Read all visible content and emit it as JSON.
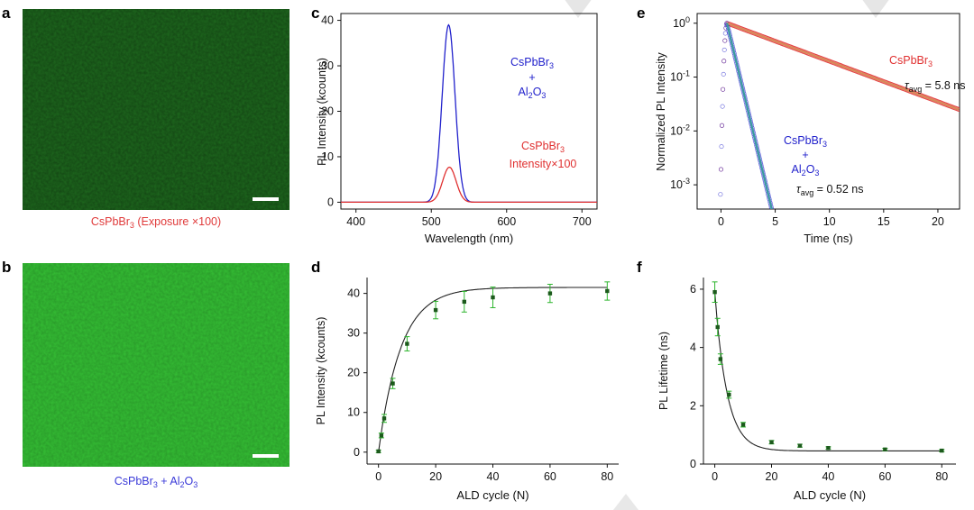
{
  "panels": {
    "a": {
      "letter": "a",
      "caption_main": "CsPbBr",
      "caption_sub": "3",
      "caption_rest": " (Exposure ×100)",
      "caption_color": "#e03a3a",
      "image_color": "#1e6a1e"
    },
    "b": {
      "letter": "b",
      "caption_main": "CsPbBr",
      "caption_sub": "3",
      "caption_mid": " + Al",
      "caption_sub2": "2",
      "caption_end": "O",
      "caption_sub3": "3",
      "caption_color": "#3a3ad8",
      "image_color": "#35c035"
    },
    "c": {
      "letter": "c"
    },
    "d": {
      "letter": "d"
    },
    "e": {
      "letter": "e"
    },
    "f": {
      "letter": "f"
    }
  },
  "colors": {
    "blue": "#2222cc",
    "red": "#e03030",
    "black": "#111111",
    "green": "#2db52d",
    "teal": "#3a9aa0",
    "orange": "#d88a5a"
  },
  "chart_data": [
    {
      "id": "c",
      "type": "line",
      "xlabel": "Wavelength (nm)",
      "ylabel": "PL Intensity (kcounts)",
      "xlim": [
        380,
        720
      ],
      "ylim": [
        -1.5,
        41.5
      ],
      "xticks": [
        400,
        500,
        600,
        700
      ],
      "yticks": [
        0,
        10,
        20,
        30,
        40
      ],
      "series": [
        {
          "name": "CsPbBr3 + Al2O3",
          "color": "#2222cc",
          "peak_x": 523,
          "peak_y": 39,
          "fwhm": 20,
          "baseline": 0
        },
        {
          "name": "CsPbBr3 Intensity ×100",
          "color": "#e03030",
          "peak_x": 524,
          "peak_y": 7.7,
          "fwhm": 21,
          "baseline": 0
        }
      ],
      "annotations": {
        "blue_l1": "CsPbBr",
        "blue_l1_sub": "3",
        "blue_l2": "+",
        "blue_l3": "Al",
        "blue_l3_sub": "2",
        "blue_l3_end": "O",
        "blue_l3_sub2": "3",
        "red_l1": "CsPbBr",
        "red_l1_sub": "3",
        "red_l2": "Intensity×100"
      }
    },
    {
      "id": "d",
      "type": "scatter",
      "xlabel": "ALD cycle (N)",
      "ylabel": "PL Intensity (kcounts)",
      "xlim": [
        -4,
        84
      ],
      "ylim": [
        -3,
        44
      ],
      "xticks": [
        0,
        20,
        40,
        60,
        80
      ],
      "yticks": [
        0,
        10,
        20,
        30,
        40
      ],
      "x": [
        0,
        1,
        2,
        5,
        10,
        20,
        30,
        40,
        60,
        80
      ],
      "y": [
        0.2,
        4.2,
        8.5,
        17.3,
        27.3,
        35.8,
        37.9,
        39.0,
        40.0,
        40.6
      ],
      "err": [
        0.3,
        0.6,
        1.0,
        1.3,
        1.8,
        2.2,
        2.6,
        2.6,
        2.3,
        2.3
      ],
      "fit": {
        "a": 41.5,
        "tau": 7.8,
        "b": 0.0
      }
    },
    {
      "id": "e",
      "type": "scatter",
      "xlabel": "Time (ns)",
      "ylabel": "Normalized PL Intensity",
      "yscale": "log",
      "xlim": [
        -2.2,
        22
      ],
      "ylim_log10": [
        -3.45,
        0.18
      ],
      "xticks": [
        0,
        5,
        10,
        15,
        20
      ],
      "yticks_exp": [
        0,
        -1,
        -2,
        -3
      ],
      "tick_base": "10",
      "series": [
        {
          "name": "CsPbBr3",
          "color": "#e03030",
          "tau": 5.8
        },
        {
          "name": "CsPbBr3 + Al2O3",
          "color": "#2222cc",
          "tau": 0.52
        }
      ],
      "annotations": {
        "red_label": "CsPbBr",
        "red_label_sub": "3",
        "red_tau": "τ",
        "red_tau_sub": "avg",
        "red_tau_val": " = 5.8 ns",
        "blue_l1": "CsPbBr",
        "blue_l1_sub": "3",
        "blue_l2": "+",
        "blue_l3": "Al",
        "blue_l3_sub": "2",
        "blue_l3_end": "O",
        "blue_l3_sub2": "3",
        "blue_tau": "τ",
        "blue_tau_sub": "avg",
        "blue_tau_val": " = 0.52 ns"
      }
    },
    {
      "id": "f",
      "type": "scatter",
      "xlabel": "ALD cycle (N)",
      "ylabel": "PL Lifetime (ns)",
      "xlim": [
        -4,
        85
      ],
      "ylim": [
        0,
        6.4
      ],
      "xticks": [
        0,
        20,
        40,
        60,
        80
      ],
      "yticks": [
        0,
        2,
        4,
        6
      ],
      "x": [
        0,
        1,
        2,
        5,
        10,
        20,
        30,
        40,
        60,
        80
      ],
      "y": [
        5.9,
        4.7,
        3.6,
        2.38,
        1.35,
        0.75,
        0.63,
        0.55,
        0.5,
        0.46
      ],
      "err": [
        0.35,
        0.3,
        0.18,
        0.12,
        0.08,
        0.06,
        0.05,
        0.04,
        0.04,
        0.04
      ],
      "fit": {
        "a": 5.9,
        "tau": 4.3,
        "b": 0.45
      }
    }
  ]
}
